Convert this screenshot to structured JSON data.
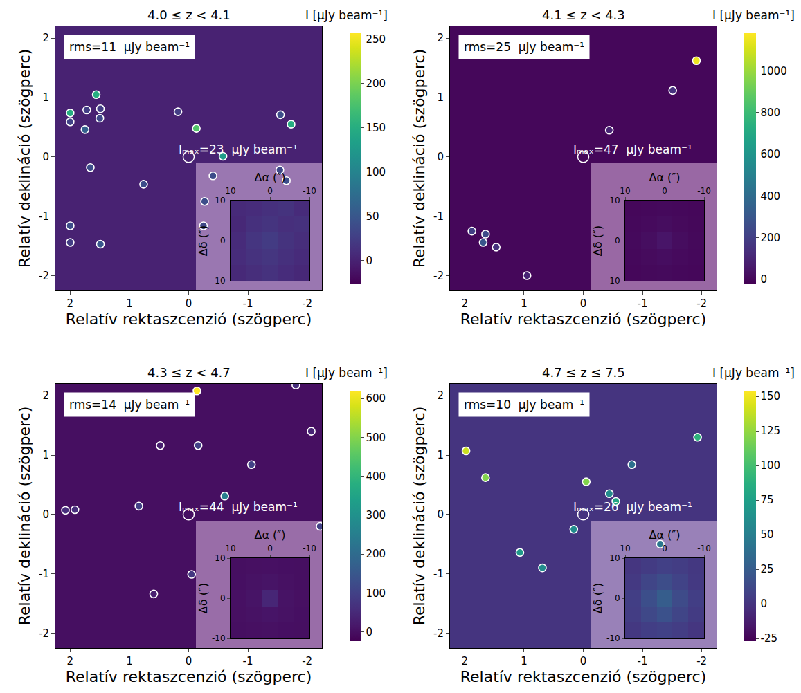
{
  "chart_data": [
    {
      "type": "scatter",
      "title": "4.0 ≤ z < 4.1",
      "xlabel": "Relatív rektaszcenzió (szögperc)",
      "ylabel": "Relatív deklináció (szögperc)",
      "xlim": [
        2.25,
        -2.25
      ],
      "ylim": [
        -2.25,
        2.2
      ],
      "xticks": [
        2,
        1,
        0,
        -1,
        -2
      ],
      "yticks": [
        -2,
        -1,
        0,
        1,
        2
      ],
      "grid": false,
      "rms_label": "rms=11  μJy beam⁻¹",
      "imax_label": "Iₘₐₓ=23  μJy beam⁻¹",
      "colorbar": {
        "title": "I [μJy beam⁻¹]",
        "range": [
          -26,
          257
        ],
        "ticks": [
          0,
          50,
          100,
          150,
          200,
          250
        ]
      },
      "target": {
        "x": 0,
        "y": 0
      },
      "sources": {
        "x": [
          2.0,
          1.56,
          1.75,
          2.0,
          1.72,
          1.49,
          1.5,
          1.66,
          0.76,
          2.0,
          2.0,
          1.49,
          -0.13,
          0.18,
          -0.58,
          -0.41,
          -1.55,
          -1.73,
          -1.54,
          -1.65,
          -0.27,
          -0.25
        ],
        "y": [
          0.74,
          1.05,
          0.46,
          0.59,
          0.79,
          0.81,
          0.65,
          -0.18,
          -0.46,
          -1.16,
          -1.44,
          -1.47,
          0.48,
          0.76,
          0.01,
          -0.32,
          0.71,
          0.55,
          -0.22,
          -0.4,
          -0.75,
          -1.16
        ],
        "values": [
          150,
          150,
          60,
          30,
          25,
          25,
          35,
          40,
          40,
          40,
          25,
          50,
          180,
          25,
          130,
          40,
          40,
          150,
          35,
          40,
          40,
          35
        ]
      },
      "inset": {
        "xlabel": "Δα (″)",
        "ylabel": "Δδ (″)",
        "xlim": [
          10,
          -10
        ],
        "ylim": [
          -10,
          10
        ],
        "xticks": [
          10,
          0,
          -10
        ],
        "yticks": [
          -10,
          0,
          10
        ],
        "x": [
          8,
          4,
          0,
          -4,
          -8
        ],
        "y": [
          -8,
          -4,
          0,
          4,
          8
        ],
        "z": [
          [
            6,
            10,
            14,
            9,
            5
          ],
          [
            9,
            14,
            18,
            12,
            8
          ],
          [
            8,
            17,
            23,
            15,
            10
          ],
          [
            5,
            12,
            16,
            11,
            13
          ],
          [
            7,
            9,
            12,
            15,
            8
          ]
        ]
      }
    },
    {
      "type": "scatter",
      "title": "4.1 ≤ z < 4.3",
      "xlabel": "Relatív rektaszcenzió (szögperc)",
      "ylabel": "Relatív deklináció (szögperc)",
      "xlim": [
        2.25,
        -2.25
      ],
      "ylim": [
        -2.25,
        2.2
      ],
      "xticks": [
        2,
        1,
        0,
        -1,
        -2
      ],
      "yticks": [
        -2,
        -1,
        0,
        1,
        2
      ],
      "grid": false,
      "rms_label": "rms=25  μJy beam⁻¹",
      "imax_label": "Iₘₐₓ=47  μJy beam⁻¹",
      "colorbar": {
        "title": "I [μJy beam⁻¹]",
        "range": [
          -20,
          1180
        ],
        "ticks": [
          0,
          200,
          400,
          600,
          800,
          1000
        ]
      },
      "target": {
        "x": 0,
        "y": 0
      },
      "sources": {
        "x": [
          -1.91,
          -1.51,
          -0.44,
          1.88,
          1.69,
          1.65,
          1.47,
          0.95
        ],
        "y": [
          1.62,
          1.12,
          0.45,
          -1.25,
          -1.44,
          -1.3,
          -1.52,
          -2.0
        ],
        "values": [
          1150,
          150,
          100,
          200,
          300,
          250,
          150,
          100
        ]
      },
      "inset": {
        "xlabel": "Δα (″)",
        "ylabel": "Δδ (″)",
        "xlim": [
          10,
          -10
        ],
        "ylim": [
          -10,
          10
        ],
        "xticks": [
          10,
          0,
          -10
        ],
        "yticks": [
          -10,
          0,
          10
        ],
        "x": [
          8,
          4,
          0,
          -4,
          -8
        ],
        "y": [
          -8,
          -4,
          0,
          4,
          8
        ],
        "z": [
          [
            0,
            5,
            8,
            4,
            0
          ],
          [
            4,
            12,
            20,
            10,
            3
          ],
          [
            6,
            22,
            47,
            18,
            5
          ],
          [
            3,
            10,
            18,
            9,
            2
          ],
          [
            0,
            4,
            6,
            3,
            0
          ]
        ]
      }
    },
    {
      "type": "scatter",
      "title": "4.3 ≤ z < 4.7",
      "xlabel": "Relatív rektaszcenzió (szögperc)",
      "ylabel": "Relatív deklináció (szögperc)",
      "xlim": [
        2.25,
        -2.25
      ],
      "ylim": [
        -2.25,
        2.2
      ],
      "xticks": [
        2,
        1,
        0,
        -1,
        -2
      ],
      "yticks": [
        -2,
        -1,
        0,
        1,
        2
      ],
      "grid": false,
      "rms_label": "rms=14  μJy beam⁻¹",
      "imax_label": "Iₘₐₓ=44  μJy beam⁻¹",
      "colorbar": {
        "title": "I [μJy beam⁻¹]",
        "range": [
          -24,
          620
        ],
        "ticks": [
          0,
          100,
          200,
          300,
          400,
          500,
          600
        ]
      },
      "target": {
        "x": 0,
        "y": 0
      },
      "sources": {
        "x": [
          -0.14,
          -1.81,
          -2.07,
          0.48,
          -0.16,
          -1.06,
          -0.61,
          0.84,
          2.08,
          1.92,
          -2.22,
          -0.05,
          0.59
        ],
        "y": [
          2.08,
          2.18,
          1.4,
          1.16,
          1.16,
          0.84,
          0.31,
          0.14,
          0.07,
          0.08,
          -0.2,
          -1.01,
          -1.34
        ],
        "values": [
          620,
          60,
          40,
          30,
          100,
          100,
          250,
          100,
          60,
          60,
          100,
          80,
          30
        ]
      },
      "inset": {
        "xlabel": "Δα (″)",
        "ylabel": "Δδ (″)",
        "xlim": [
          10,
          -10
        ],
        "ylim": [
          -10,
          10
        ],
        "xticks": [
          10,
          0,
          -10
        ],
        "yticks": [
          -10,
          0,
          10
        ],
        "x": [
          8,
          4,
          0,
          -4,
          -8
        ],
        "y": [
          -8,
          -4,
          0,
          4,
          8
        ],
        "z": [
          [
            0,
            2,
            4,
            1,
            0
          ],
          [
            2,
            6,
            10,
            5,
            1
          ],
          [
            3,
            9,
            44,
            8,
            2
          ],
          [
            1,
            5,
            9,
            4,
            0
          ],
          [
            0,
            2,
            3,
            1,
            0
          ]
        ]
      }
    },
    {
      "type": "scatter",
      "title": "4.7 ≤ z ≤ 7.5",
      "xlabel": "Relatív rektaszcenzió (szögperc)",
      "ylabel": "Relatív deklináció (szögperc)",
      "xlim": [
        2.25,
        -2.25
      ],
      "ylim": [
        -2.25,
        2.2
      ],
      "xticks": [
        2,
        1,
        0,
        -1,
        -2
      ],
      "yticks": [
        -2,
        -1,
        0,
        1,
        2
      ],
      "grid": false,
      "rms_label": "rms=10  μJy beam⁻¹",
      "imax_label": "Iₘₐₓ=26  μJy beam⁻¹",
      "colorbar": {
        "title": "I [μJy beam⁻¹]",
        "range": [
          -27,
          154
        ],
        "ticks": [
          -25,
          0,
          25,
          50,
          75,
          100,
          125,
          150
        ]
      },
      "target": {
        "x": 0,
        "y": 0
      },
      "sources": {
        "x": [
          1.98,
          1.65,
          -0.05,
          -0.44,
          -0.55,
          0.16,
          1.07,
          0.69,
          -0.82,
          -1.93,
          -1.3
        ],
        "y": [
          1.07,
          0.62,
          0.55,
          0.35,
          0.22,
          -0.25,
          -0.64,
          -0.9,
          0.84,
          1.3,
          -0.5
        ],
        "values": [
          140,
          120,
          120,
          60,
          80,
          60,
          70,
          60,
          40,
          90,
          45
        ]
      },
      "inset": {
        "xlabel": "Δα (″)",
        "ylabel": "Δδ (″)",
        "xlim": [
          10,
          -10
        ],
        "ylim": [
          -10,
          10
        ],
        "xticks": [
          10,
          0,
          -10
        ],
        "yticks": [
          -10,
          0,
          10
        ],
        "x": [
          8,
          4,
          0,
          -4,
          -8
        ],
        "y": [
          -8,
          -4,
          0,
          4,
          8
        ],
        "z": [
          [
            2,
            6,
            8,
            5,
            1
          ],
          [
            5,
            12,
            18,
            10,
            4
          ],
          [
            6,
            16,
            26,
            14,
            6
          ],
          [
            3,
            10,
            15,
            9,
            3
          ],
          [
            1,
            4,
            7,
            5,
            2
          ]
        ]
      }
    }
  ]
}
